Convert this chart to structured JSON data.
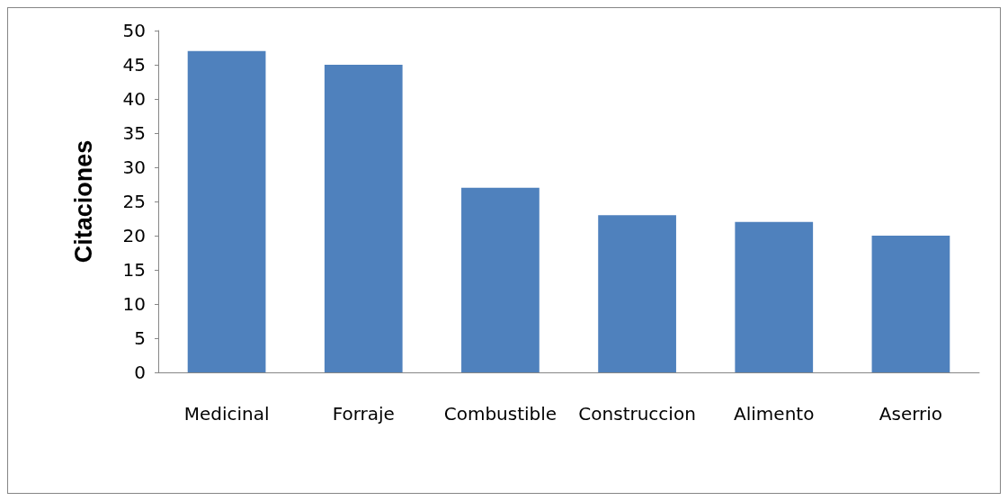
{
  "chart_data": {
    "type": "bar",
    "ylabel": "Citaciones",
    "categories": [
      "Medicinal",
      "Forraje",
      "Combustible",
      "Construccion",
      "Alimento",
      "Aserrio"
    ],
    "values": [
      47,
      45,
      27,
      23,
      22,
      20
    ],
    "color": "#4f81bd",
    "ylim": [
      0,
      50
    ],
    "yticks": [
      0,
      5,
      10,
      15,
      20,
      25,
      30,
      35,
      40,
      45,
      50
    ],
    "grid": false
  }
}
